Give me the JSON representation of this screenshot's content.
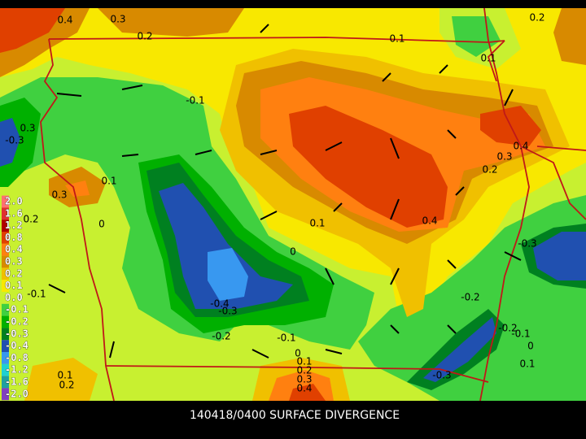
{
  "header": {
    "title": "140418/0400 SURFACE DIVERGENCE"
  },
  "legend": {
    "items": [
      {
        "label": "2.0",
        "color": "#ff7070"
      },
      {
        "label": "1.6",
        "color": "#e03030"
      },
      {
        "label": "1.2",
        "color": "#b00000"
      },
      {
        "label": "0.8",
        "color": "#e04000"
      },
      {
        "label": "0.4",
        "color": "#ff8010"
      },
      {
        "label": "0.3",
        "color": "#d88a00"
      },
      {
        "label": "0.2",
        "color": "#f0c000"
      },
      {
        "label": "0.1",
        "color": "#f8e800"
      },
      {
        "label": "0.0",
        "color": "#c8f030"
      },
      {
        "label": "-0.1",
        "color": "#40d040"
      },
      {
        "label": "-0.2",
        "color": "#00b000"
      },
      {
        "label": "-0.3",
        "color": "#008020"
      },
      {
        "label": "-0.4",
        "color": "#2050b0"
      },
      {
        "label": "-0.8",
        "color": "#3898f0"
      },
      {
        "label": "-1.2",
        "color": "#20d0d0"
      },
      {
        "label": "-1.6",
        "color": "#20a0a0"
      },
      {
        "label": "-2.0",
        "color": "#8040c0"
      }
    ]
  },
  "map": {
    "contour_labels": [
      "0.4",
      "0.3",
      "0.2",
      "0.1",
      "0.2",
      "0.1",
      "-0.1",
      "0.3",
      "-0.3",
      "0.1",
      "0.3",
      "0.2",
      "0",
      "0.1",
      "0.4",
      "0.3",
      "0.4",
      "0.2",
      "-0.3",
      "0",
      "-0.2",
      "-0.4",
      "-0.3",
      "-0.1",
      "-0.2",
      "-0.1",
      "0",
      "0.1",
      "0.2",
      "0.3",
      "0.4",
      "-0.3",
      "-0.2",
      "-0.1",
      "0",
      "0.1",
      "0.1",
      "0.2"
    ]
  }
}
